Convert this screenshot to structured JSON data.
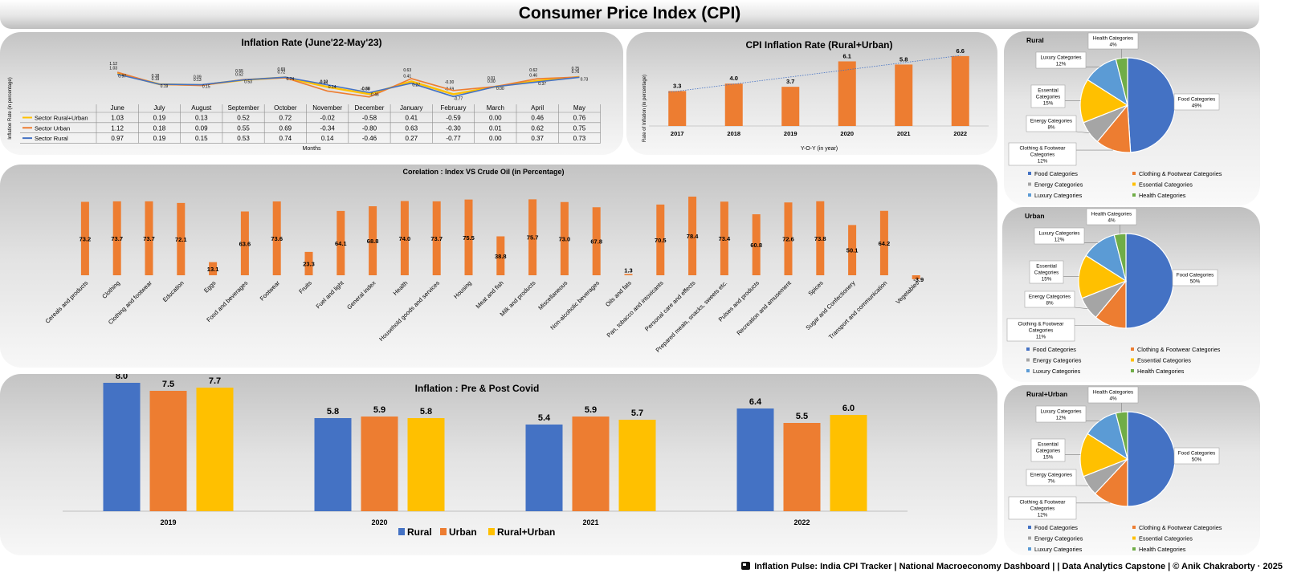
{
  "page": {
    "title": "Consumer Price Index (CPI)",
    "footer": "Inflation Pulse: India CPI Tracker  |  National Macroeconomy Dashboard  |  |  Data Analytics Capstone  |  © Anik Chakraborty · 2025"
  },
  "colors": {
    "blue": "#4472C4",
    "orange": "#ED7D31",
    "gray": "#A5A5A5",
    "yellow": "#FFC000",
    "lightblue": "#5B9BD5",
    "green": "#70AD47"
  },
  "chart_data": [
    {
      "id": "inflation-rate",
      "type": "line",
      "title": "Inflation Rate (June'22-May'23)",
      "xlabel": "Months",
      "ylabel": "Inflation Rate (in percentage)",
      "categories": [
        "June",
        "July",
        "August",
        "September",
        "October",
        "November",
        "December",
        "January",
        "February",
        "March",
        "April",
        "May"
      ],
      "series": [
        {
          "name": "Sector Rural+Urban",
          "color": "#FFC000",
          "values": [
            1.03,
            0.19,
            0.13,
            0.52,
            0.72,
            -0.02,
            -0.58,
            0.41,
            -0.59,
            0.0,
            0.46,
            0.76
          ]
        },
        {
          "name": "Sector Urban",
          "color": "#ED7D31",
          "values": [
            1.12,
            0.18,
            0.09,
            0.55,
            0.69,
            -0.34,
            -0.8,
            0.63,
            -0.3,
            0.01,
            0.62,
            0.75
          ]
        },
        {
          "name": "Sector Rural",
          "color": "#4472C4",
          "values": [
            0.97,
            0.19,
            0.15,
            0.53,
            0.74,
            0.14,
            -0.46,
            0.27,
            -0.77,
            0.0,
            0.37,
            0.73
          ]
        }
      ],
      "table": true
    },
    {
      "id": "cpi-yoy",
      "type": "bar",
      "title": "CPI Inflation Rate (Rural+Urban)",
      "xlabel": "Y-O-Y (in year)",
      "ylabel": "Rate of Inflation (in percentage)",
      "categories": [
        "2017",
        "2018",
        "2019",
        "2020",
        "2021",
        "2022"
      ],
      "values": [
        3.3,
        4.0,
        3.7,
        6.1,
        5.8,
        6.6
      ],
      "trendline": true,
      "ylim": [
        0,
        7
      ]
    },
    {
      "id": "correlation",
      "type": "bar",
      "title": "Corelation : Index VS Crude Oil (in Percentage)",
      "categories": [
        "Cereals and products",
        "Clothing",
        "Clothing and footwear",
        "Education",
        "Eggs",
        "Food and beverages",
        "Footwear",
        "Fruits",
        "Fuel and light",
        "General index",
        "Health",
        "Household goods and services",
        "Housing",
        "Meat and fish",
        "Milk and products",
        "Miscellaneous",
        "Non-alcoholic beverages",
        "Oils and fats",
        "Pan, tobacco and intoxicants",
        "Personal care and effects",
        "Prepared meals, snacks, sweets etc.",
        "Pulses and products",
        "Recreation and amusement",
        "Spices",
        "Sugar and Confectionery",
        "Transport and communication",
        "Vegetables"
      ],
      "values": [
        73.2,
        73.7,
        73.7,
        72.1,
        13.1,
        63.6,
        73.6,
        23.3,
        64.1,
        68.8,
        74.0,
        73.7,
        75.5,
        38.8,
        75.7,
        73.0,
        67.8,
        1.3,
        70.5,
        78.4,
        73.4,
        60.8,
        72.6,
        73.8,
        50.1,
        64.2,
        -3.9
      ],
      "labels": [
        "73.2",
        "73.7",
        "73.7",
        "72.1",
        "13.1",
        "63.6",
        "73.6",
        "23.3",
        "64.1",
        "68.8",
        "74.0",
        "73.7",
        "75.5",
        "38.8",
        "75.7",
        "73.0",
        "67.8",
        "1.3",
        "70.5",
        "78.4",
        "73.4",
        "60.8",
        "72.6",
        "73.8",
        "50.1",
        "64.2",
        "-3.9"
      ]
    },
    {
      "id": "pre-post-covid",
      "type": "bar",
      "title": "Inflation : Pre & Post Covid",
      "categories": [
        "2019",
        "2020",
        "2021",
        "2022"
      ],
      "series": [
        {
          "name": "Rural",
          "color": "#4472C4",
          "values": [
            8.0,
            5.8,
            5.4,
            6.4
          ]
        },
        {
          "name": "Urban",
          "color": "#ED7D31",
          "values": [
            7.5,
            5.9,
            5.9,
            5.5
          ]
        },
        {
          "name": "Rural+Urban",
          "color": "#FFC000",
          "values": [
            7.7,
            5.8,
            5.7,
            6.0
          ]
        }
      ],
      "legend": "bottom"
    },
    {
      "id": "pie-rural",
      "type": "pie",
      "title": "Rural",
      "slices": [
        {
          "name": "Food Categories",
          "value": 49,
          "color": "#4472C4",
          "label": "Food Categories\n49%"
        },
        {
          "name": "Clothing & Footwear Categories",
          "value": 12,
          "color": "#ED7D31",
          "label": "Clothing & Footwear\nCategories\n12%"
        },
        {
          "name": "Energy Categories",
          "value": 8,
          "color": "#A5A5A5",
          "label": "Energy Categories\n8%"
        },
        {
          "name": "Essential Categories",
          "value": 15,
          "color": "#FFC000",
          "label": "Essential\nCategories\n15%"
        },
        {
          "name": "Luxury Categories",
          "value": 12,
          "color": "#5B9BD5",
          "label": "Luxury Categories\n12%"
        },
        {
          "name": "Health Categories",
          "value": 4,
          "color": "#70AD47",
          "label": "Health Categories\n4%"
        }
      ]
    },
    {
      "id": "pie-urban",
      "type": "pie",
      "title": "Urban",
      "slices": [
        {
          "name": "Food Categories",
          "value": 50,
          "color": "#4472C4",
          "label": "Food Categories\n50%"
        },
        {
          "name": "Clothing & Footwear Categories",
          "value": 11,
          "color": "#ED7D31",
          "label": "Clothing & Footwear\nCategories\n11%"
        },
        {
          "name": "Energy Categories",
          "value": 8,
          "color": "#A5A5A5",
          "label": "Energy Categories\n8%"
        },
        {
          "name": "Essential Categories",
          "value": 15,
          "color": "#FFC000",
          "label": "Essential\nCategories\n15%"
        },
        {
          "name": "Luxury Categories",
          "value": 12,
          "color": "#5B9BD5",
          "label": "Luxury Categories\n12%"
        },
        {
          "name": "Health Categories",
          "value": 4,
          "color": "#70AD47",
          "label": "Health Categories\n4%"
        }
      ]
    },
    {
      "id": "pie-rural-urban",
      "type": "pie",
      "title": "Rural+Urban",
      "slices": [
        {
          "name": "Food Categories",
          "value": 50,
          "color": "#4472C4",
          "label": "Food Categories\n50%"
        },
        {
          "name": "Clothing & Footwear Categories",
          "value": 12,
          "color": "#ED7D31",
          "label": "Clothing & Footwear\nCategories\n12%"
        },
        {
          "name": "Energy Categories",
          "value": 7,
          "color": "#A5A5A5",
          "label": "Energy Categories\n7%"
        },
        {
          "name": "Essential Categories",
          "value": 15,
          "color": "#FFC000",
          "label": "Essential\nCategories\n15%"
        },
        {
          "name": "Luxury Categories",
          "value": 12,
          "color": "#5B9BD5",
          "label": "Luxury Categories\n12%"
        },
        {
          "name": "Health Categories",
          "value": 4,
          "color": "#70AD47",
          "label": "Health Categories\n4%"
        }
      ]
    }
  ]
}
